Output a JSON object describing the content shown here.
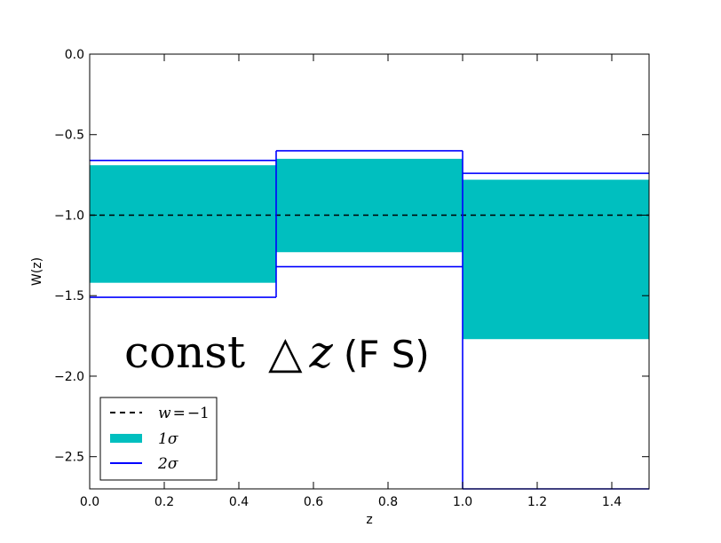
{
  "chart_data": {
    "type": "area",
    "xlabel": "z",
    "ylabel": "W(z)",
    "xlim": [
      0.0,
      1.5
    ],
    "ylim": [
      -2.7,
      0.0
    ],
    "xticks": [
      "0.0",
      "0.2",
      "0.4",
      "0.6",
      "0.8",
      "1.0",
      "1.2",
      "1.4"
    ],
    "yticks": [
      "0.0",
      "−0.5",
      "−1.0",
      "−1.5",
      "−2.0",
      "−2.5"
    ],
    "grid": false,
    "legend_position": "lower-left",
    "annotation": {
      "math_part1": "const",
      "math_part2": "△",
      "math_part3": "z",
      "plain_part": "(F S)"
    },
    "reference_line": {
      "name": "w=−1",
      "y": -1.0,
      "style": "dashed",
      "color": "#000000"
    },
    "bins": [
      {
        "z_min": 0.0,
        "z_max": 0.5,
        "one_sigma": [
          -1.42,
          -0.69
        ],
        "two_sigma": [
          -1.51,
          -0.66
        ]
      },
      {
        "z_min": 0.5,
        "z_max": 1.0,
        "one_sigma": [
          -1.23,
          -0.65
        ],
        "two_sigma": [
          -1.32,
          -0.6
        ]
      },
      {
        "z_min": 1.0,
        "z_max": 1.5,
        "one_sigma": [
          -1.77,
          -0.78
        ],
        "two_sigma": [
          -2.7,
          -0.74
        ]
      }
    ],
    "series": [
      {
        "name": "1σ",
        "color": "#00bfbf",
        "style": "filled band"
      },
      {
        "name": "2σ",
        "color": "#0000ff",
        "style": "step outline"
      }
    ],
    "legend": [
      {
        "label_lhs": "w",
        "label_op": "=",
        "label_rhs": "−1",
        "kind": "dashed",
        "color": "#000000"
      },
      {
        "label": "1σ",
        "kind": "band",
        "color": "#00bfbf"
      },
      {
        "label": "2σ",
        "kind": "line",
        "color": "#0000ff"
      }
    ]
  }
}
